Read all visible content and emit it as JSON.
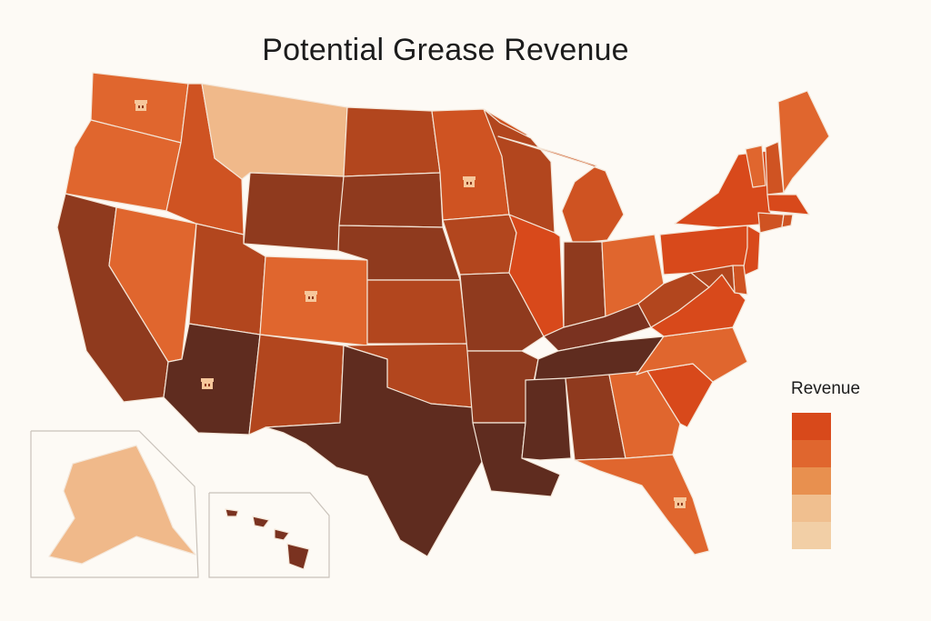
{
  "title": "Potential Grease Revenue",
  "legend": {
    "title": "Revenue",
    "swatches": [
      {
        "level": 5,
        "color": "#d8491b"
      },
      {
        "level": 4,
        "color": "#e0662e"
      },
      {
        "level": 3,
        "color": "#e8904f"
      },
      {
        "level": 2,
        "color": "#f0bf8f"
      },
      {
        "level": 1,
        "color": "#f2cfa6"
      }
    ]
  },
  "palette": {
    "1": "#f0b98a",
    "2": "#e0662e",
    "3": "#cf5322",
    "4": "#b2461e",
    "5": "#8f3a1e",
    "6": "#7a3220",
    "7": "#5f2c1f",
    "R": "#d8491b"
  },
  "states": [
    {
      "name": "Washington",
      "level": "2",
      "icon": true
    },
    {
      "name": "Oregon",
      "level": "2"
    },
    {
      "name": "California",
      "level": "5"
    },
    {
      "name": "Nevada",
      "level": "2"
    },
    {
      "name": "Idaho",
      "level": "3"
    },
    {
      "name": "Montana",
      "level": "1"
    },
    {
      "name": "Wyoming",
      "level": "5"
    },
    {
      "name": "Utah",
      "level": "4"
    },
    {
      "name": "Colorado",
      "level": "2",
      "icon": true
    },
    {
      "name": "Arizona",
      "level": "7",
      "icon": true
    },
    {
      "name": "New Mexico",
      "level": "4"
    },
    {
      "name": "North Dakota",
      "level": "4"
    },
    {
      "name": "South Dakota",
      "level": "5"
    },
    {
      "name": "Nebraska",
      "level": "5"
    },
    {
      "name": "Kansas",
      "level": "4"
    },
    {
      "name": "Oklahoma",
      "level": "4"
    },
    {
      "name": "Texas",
      "level": "7"
    },
    {
      "name": "Minnesota",
      "level": "3",
      "icon": true
    },
    {
      "name": "Iowa",
      "level": "4"
    },
    {
      "name": "Missouri",
      "level": "5"
    },
    {
      "name": "Arkansas",
      "level": "5"
    },
    {
      "name": "Louisiana",
      "level": "7"
    },
    {
      "name": "Wisconsin",
      "level": "4"
    },
    {
      "name": "Illinois",
      "level": "R"
    },
    {
      "name": "Michigan",
      "level": "3"
    },
    {
      "name": "Indiana",
      "level": "5"
    },
    {
      "name": "Ohio",
      "level": "2"
    },
    {
      "name": "Kentucky",
      "level": "6"
    },
    {
      "name": "Tennessee",
      "level": "7"
    },
    {
      "name": "Mississippi",
      "level": "7"
    },
    {
      "name": "Alabama",
      "level": "5"
    },
    {
      "name": "Georgia",
      "level": "2"
    },
    {
      "name": "Florida",
      "level": "2",
      "icon": true
    },
    {
      "name": "South Carolina",
      "level": "R"
    },
    {
      "name": "North Carolina",
      "level": "2"
    },
    {
      "name": "Virginia",
      "level": "R"
    },
    {
      "name": "West Virginia",
      "level": "4"
    },
    {
      "name": "Pennsylvania",
      "level": "R"
    },
    {
      "name": "New York",
      "level": "R"
    },
    {
      "name": "Vermont",
      "level": "2"
    },
    {
      "name": "New Hampshire",
      "level": "3"
    },
    {
      "name": "Maine",
      "level": "2"
    },
    {
      "name": "Massachusetts",
      "level": "R"
    },
    {
      "name": "Connecticut",
      "level": "3"
    },
    {
      "name": "Rhode Island",
      "level": "3"
    },
    {
      "name": "New Jersey",
      "level": "R"
    },
    {
      "name": "Delaware",
      "level": "3"
    },
    {
      "name": "Maryland",
      "level": "4"
    },
    {
      "name": "Alaska",
      "level": "1"
    },
    {
      "name": "Hawaii",
      "level": "6"
    }
  ]
}
